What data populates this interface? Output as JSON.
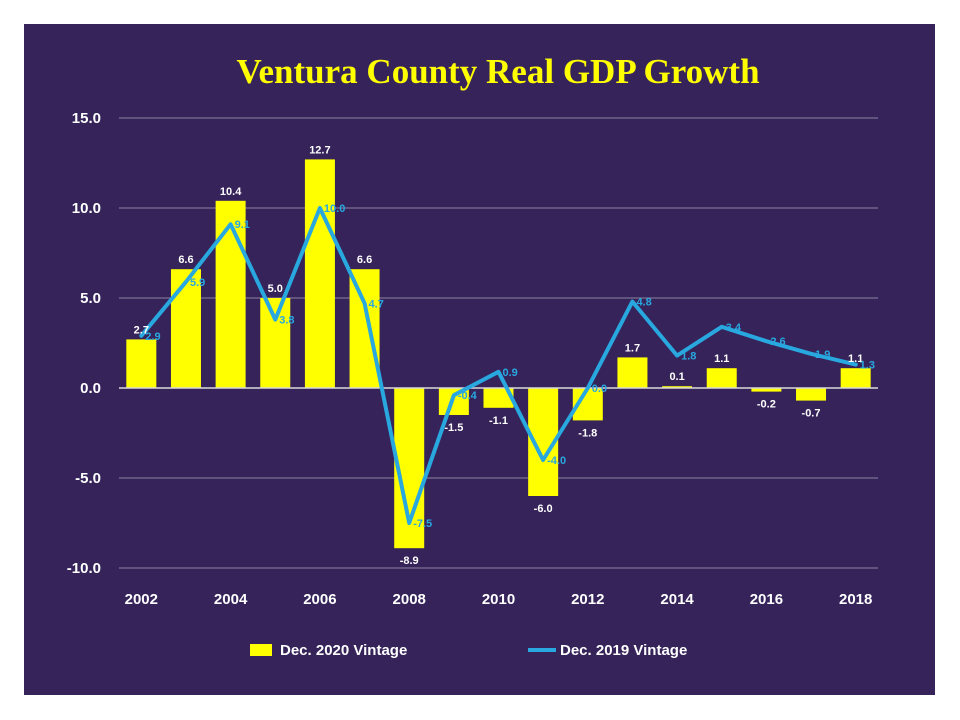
{
  "chart_data": {
    "type": "bar+line",
    "title": "Ventura County Real GDP Growth",
    "categories": [
      "2002",
      "2003",
      "2004",
      "2005",
      "2006",
      "2007",
      "2008",
      "2009",
      "2010",
      "2011",
      "2012",
      "2013",
      "2014",
      "2015",
      "2016",
      "2017",
      "2018"
    ],
    "x_tick_labels": [
      "2002",
      "2004",
      "2006",
      "2008",
      "2010",
      "2012",
      "2014",
      "2016",
      "2018"
    ],
    "y_tick_labels": [
      "15.0",
      "10.0",
      "5.0",
      "0.0",
      "-5.0",
      "-10.0"
    ],
    "ylim": [
      -10,
      15
    ],
    "y_ticks": [
      15,
      10,
      5,
      0,
      -5,
      -10
    ],
    "grid": true,
    "legend_position": "bottom",
    "series": [
      {
        "name": "Dec. 2020 Vintage",
        "type": "bar",
        "color": "#ffff00",
        "values": [
          2.7,
          6.6,
          10.4,
          5.0,
          12.7,
          6.6,
          -8.9,
          -1.5,
          -1.1,
          -6.0,
          -1.8,
          1.7,
          0.1,
          1.1,
          -0.2,
          -0.7,
          1.1
        ],
        "labels": [
          "2.7",
          "6.6",
          "10.4",
          "5.0",
          "12.7",
          "6.6",
          "-8.9",
          "-1.5",
          "-1.1",
          "-6.0",
          "-1.8",
          "1.7",
          "0.1",
          "1.1",
          "-0.2",
          "-0.7",
          "1.1"
        ]
      },
      {
        "name": "Dec. 2019 Vintage",
        "type": "line",
        "color": "#29a8e0",
        "values": [
          2.9,
          5.9,
          9.1,
          3.8,
          10.0,
          4.7,
          -7.5,
          -0.4,
          0.9,
          -4.0,
          0.0,
          4.8,
          1.8,
          3.4,
          2.6,
          1.9,
          1.3
        ],
        "labels": [
          "2.9",
          "5.9",
          "9.1",
          "3.8",
          "10.0",
          "4.7",
          "-7.5",
          "-0.4",
          "0.9",
          "-4.0",
          "0.0",
          "4.8",
          "1.8",
          "3.4",
          "2.6",
          "1.9",
          "1.3"
        ]
      }
    ]
  },
  "colors": {
    "background": "#35235a",
    "bars": "#ffff00",
    "line": "#29a8e0",
    "title": "#ffff00",
    "gridline": "#8c839f"
  }
}
